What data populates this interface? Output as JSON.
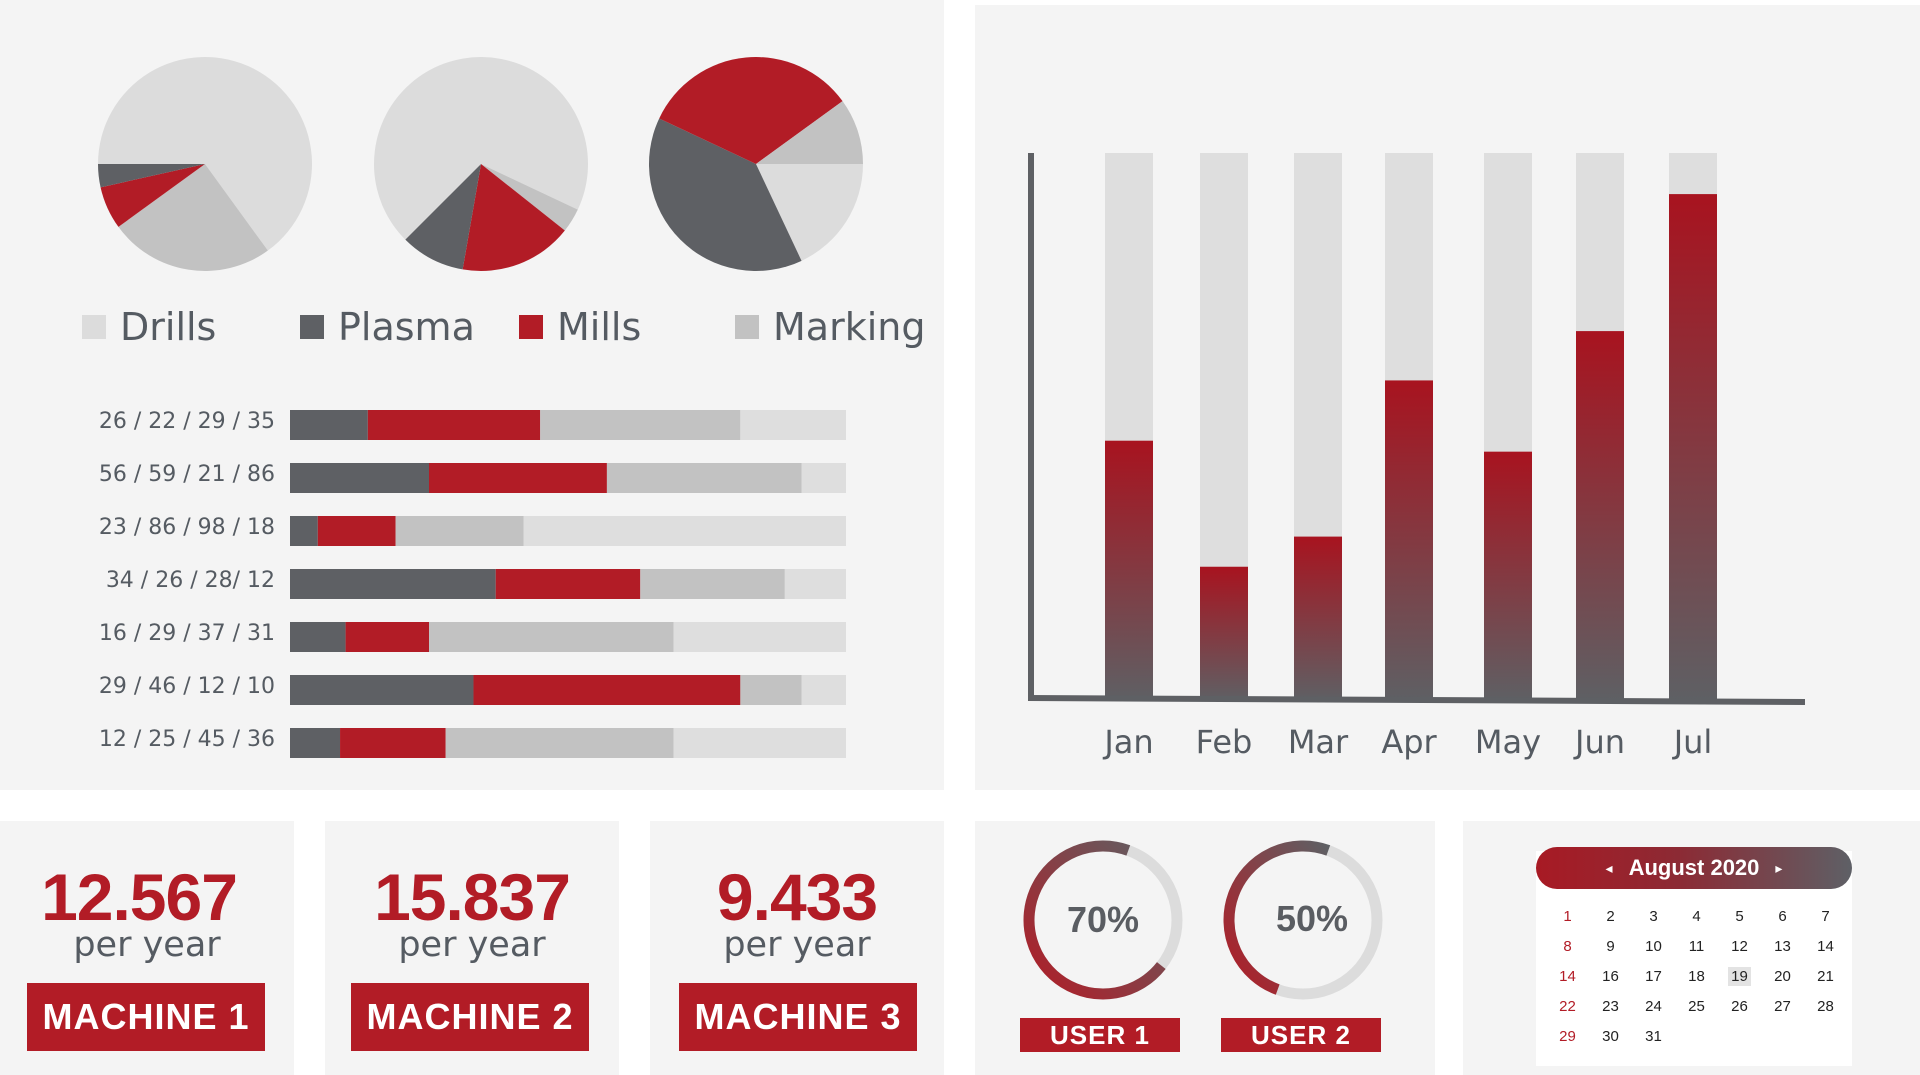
{
  "colors": {
    "drills": "#dcdcdc",
    "plasma": "#5e6064",
    "mills": "#b21c26",
    "marking": "#c2c2c2",
    "track": "#dedede",
    "axis": "#5e6064"
  },
  "legend": [
    {
      "key": "drills",
      "label": "Drills"
    },
    {
      "key": "plasma",
      "label": "Plasma"
    },
    {
      "key": "mills",
      "label": "Mills"
    },
    {
      "key": "marking",
      "label": "Marking"
    }
  ],
  "chart_data": [
    {
      "type": "pie",
      "series": [
        "Drills",
        "Plasma",
        "Mills",
        "Marking"
      ],
      "pies": [
        {
          "values": [
            0.65,
            0.035,
            0.065,
            0.25
          ]
        },
        {
          "values": [
            0.57,
            0.08,
            0.14,
            0.03
          ]
        },
        {
          "values": [
            0.18,
            0.39,
            0.33,
            0.1
          ]
        }
      ]
    },
    {
      "type": "bar",
      "orientation": "horizontal",
      "stacked": true,
      "series": [
        "Plasma",
        "Mills",
        "Marking",
        "Drills"
      ],
      "rows": [
        {
          "label": "26 / 22 / 29 / 35",
          "values": [
            14,
            31,
            36,
            19
          ]
        },
        {
          "label": "56 / 59 / 21 / 86",
          "values": [
            25,
            32,
            35,
            8
          ]
        },
        {
          "label": "23 / 86 / 98 / 18",
          "values": [
            5,
            14,
            23,
            58
          ]
        },
        {
          "label": "34 / 26 / 28/ 12",
          "values": [
            37,
            26,
            26,
            11
          ]
        },
        {
          "label": "16 / 29 / 37 / 31",
          "values": [
            10,
            15,
            44,
            31
          ]
        },
        {
          "label": "29 / 46 / 12 / 10",
          "values": [
            33,
            48,
            11,
            8
          ]
        },
        {
          "label": "12 / 25 / 45 / 36",
          "values": [
            9,
            19,
            41,
            31
          ]
        }
      ]
    },
    {
      "type": "bar",
      "categories": [
        "Jan",
        "Feb",
        "Mar",
        "Apr",
        "May",
        "Jun",
        "Jul"
      ],
      "values": [
        47.5,
        24.5,
        30,
        58.5,
        45.5,
        67.5,
        92.5
      ],
      "ylim": [
        0,
        100
      ]
    }
  ],
  "machines": [
    {
      "value": "12.567",
      "unit": "per year",
      "label": "MACHINE 1"
    },
    {
      "value": "15.837",
      "unit": "per year",
      "label": "MACHINE 2"
    },
    {
      "value": "9.433",
      "unit": "per year",
      "label": "MACHINE 3"
    }
  ],
  "users": [
    {
      "percent": 70,
      "text": "70%",
      "label": "USER 1"
    },
    {
      "percent": 50,
      "text": "50%",
      "label": "USER 2"
    }
  ],
  "calendar": {
    "title": "August 2020",
    "prev": "◂",
    "next": "▸",
    "selected": "19",
    "weeks": [
      [
        "1",
        "2",
        "3",
        "4",
        "5",
        "6",
        "7"
      ],
      [
        "8",
        "9",
        "10",
        "11",
        "12",
        "13",
        "14"
      ],
      [
        "14",
        "16",
        "17",
        "18",
        "19",
        "20",
        "21"
      ],
      [
        "22",
        "23",
        "24",
        "25",
        "26",
        "27",
        "28"
      ],
      [
        "29",
        "30",
        "31"
      ]
    ]
  }
}
